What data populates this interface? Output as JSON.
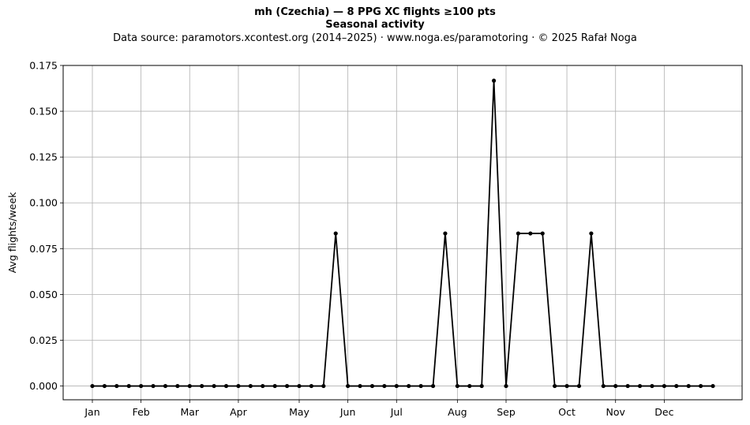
{
  "chart_data": {
    "type": "line",
    "title": "mh (Czechia)  —  8 PPG XC flights ≥100 pts",
    "subtitle": "Seasonal activity",
    "source": "Data source: paramotors.xcontest.org (2014–2025)  ·  www.noga.es/paramotoring  ·  © 2025 Rafał Noga",
    "ylabel": "Avg flights/week",
    "xlabel": "",
    "ylim": [
      -0.0075,
      0.175
    ],
    "yticks": [
      "0.000",
      "0.025",
      "0.050",
      "0.075",
      "0.100",
      "0.125",
      "0.150",
      "0.175"
    ],
    "ytick_values": [
      0,
      0.025,
      0.05,
      0.075,
      0.1,
      0.125,
      0.15,
      0.175
    ],
    "xlim": [
      -2.4,
      53.4
    ],
    "grid": true,
    "xticks": [
      {
        "label": "Jan",
        "week": 0
      },
      {
        "label": "Feb",
        "week": 4
      },
      {
        "label": "Mar",
        "week": 8
      },
      {
        "label": "Apr",
        "week": 12
      },
      {
        "label": "May",
        "week": 17
      },
      {
        "label": "Jun",
        "week": 21
      },
      {
        "label": "Jul",
        "week": 25
      },
      {
        "label": "Aug",
        "week": 30
      },
      {
        "label": "Sep",
        "week": 34
      },
      {
        "label": "Oct",
        "week": 39
      },
      {
        "label": "Nov",
        "week": 43
      },
      {
        "label": "Dec",
        "week": 47
      }
    ],
    "series": [
      {
        "color": "#000000",
        "x": [
          0,
          1,
          2,
          3,
          4,
          5,
          6,
          7,
          8,
          9,
          10,
          11,
          12,
          13,
          14,
          15,
          16,
          17,
          18,
          19,
          20,
          21,
          22,
          23,
          24,
          25,
          26,
          27,
          28,
          29,
          30,
          31,
          32,
          33,
          34,
          35,
          36,
          37,
          38,
          39,
          40,
          41,
          42,
          43,
          44,
          45,
          46,
          47,
          48,
          49,
          50,
          51
        ],
        "values": [
          0,
          0,
          0,
          0,
          0,
          0,
          0,
          0,
          0,
          0,
          0,
          0,
          0,
          0,
          0,
          0,
          0,
          0,
          0,
          0,
          0.0833,
          0,
          0,
          0,
          0,
          0,
          0,
          0,
          0,
          0.0833,
          0,
          0,
          0,
          0.1667,
          0,
          0.0833,
          0.0833,
          0.0833,
          0,
          0,
          0,
          0.0833,
          0,
          0,
          0,
          0,
          0,
          0,
          0,
          0,
          0,
          0
        ]
      }
    ]
  }
}
